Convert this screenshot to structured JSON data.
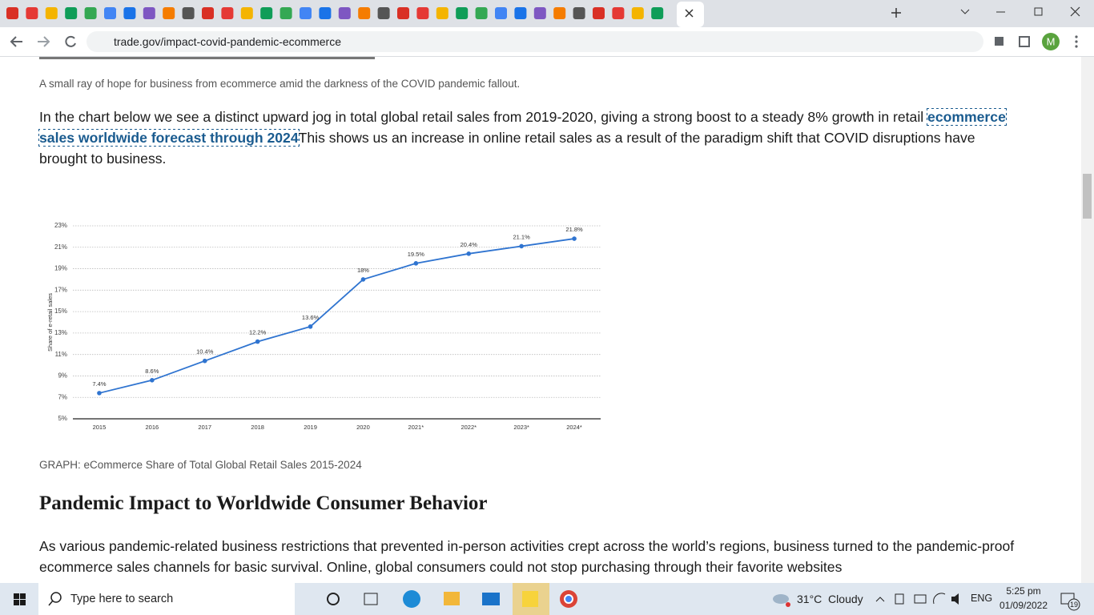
{
  "browser": {
    "url": "trade.gov/impact-covid-pandemic-ecommerce",
    "profile": "M"
  },
  "article": {
    "image_caption": "A small ray of hope for business from ecommerce amid the darkness of the COVID pandemic fallout.",
    "paragraph_1": {
      "before": "In the chart below we see a distinct upward jog in total global retail sales from 2019-2020, giving a strong boost to a steady 8% growth in retail ",
      "link": "ecommerce sales worldwide forecast through 2024",
      "after": "This shows us an increase in online retail sales as a result of the paradigm shift that COVID disruptions have brought to business."
    },
    "graph_caption": "GRAPH: eCommerce Share of Total Global Retail Sales 2015-2024",
    "heading": "Pandemic Impact to Worldwide Consumer Behavior",
    "paragraph_2": "As various pandemic-related business restrictions that prevented in-person activities crept across the world’s regions, business turned to the pandemic-proof ecommerce sales channels for basic survival. Online, global consumers could not stop purchasing through their favorite websites"
  },
  "chart_data": {
    "type": "line",
    "y_label": "Share of e-retail sales",
    "categories": [
      "2015",
      "2016",
      "2017",
      "2018",
      "2019",
      "2020",
      "2021*",
      "2022*",
      "2023*",
      "2024*"
    ],
    "values": [
      7.4,
      8.6,
      10.4,
      12.2,
      13.6,
      18,
      19.5,
      20.4,
      21.1,
      21.8
    ],
    "value_labels": [
      "7.4%",
      "8.6%",
      "10.4%",
      "12.2%",
      "13.6%",
      "18%",
      "19.5%",
      "20.4%",
      "21.1%",
      "21.8%"
    ],
    "color": "#2f74d0",
    "ylim": [
      5,
      23
    ],
    "yticks": [
      {
        "value": 5,
        "label": "5%"
      },
      {
        "value": 7,
        "label": "7%"
      },
      {
        "value": 9,
        "label": "9%"
      },
      {
        "value": 11,
        "label": "11%"
      },
      {
        "value": 13,
        "label": "13%"
      },
      {
        "value": 15,
        "label": "15%"
      },
      {
        "value": 17,
        "label": "17%"
      },
      {
        "value": 19,
        "label": "19%"
      },
      {
        "value": 21,
        "label": "21%"
      },
      {
        "value": 23,
        "label": "23%"
      }
    ],
    "grid": true
  },
  "taskbar": {
    "search": "Type here to search",
    "weather": "31°C  Cloudy",
    "language": "ENG",
    "time": "5:25 pm",
    "date": "01/09/2022",
    "notifications": "19"
  }
}
